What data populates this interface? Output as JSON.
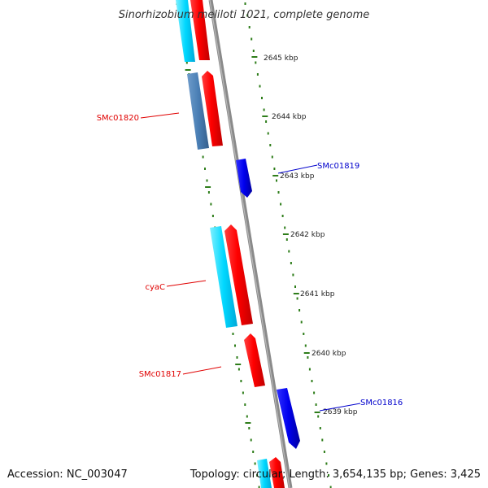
{
  "title": "Sinorhizobium meliloti 1021, complete genome",
  "accession": "Accession: NC_003047",
  "topology": "Topology: circular; Length: 3,654,135 bp; Genes: 3,425",
  "colors": {
    "backbone": "#888888",
    "ticks": "#2e7d1a",
    "forward_gene": "#ff0000",
    "reverse_gene": "#0000ee",
    "forward_aux": "#00ccff",
    "forward_aux_dark": "#4a7fb5",
    "label_forward": "#e00000",
    "label_reverse": "#0000cc"
  },
  "kbp_labels": [
    {
      "text": "2645 kbp"
    },
    {
      "text": "2644 kbp"
    },
    {
      "text": "2643 kbp"
    },
    {
      "text": "2642 kbp"
    },
    {
      "text": "2641 kbp"
    },
    {
      "text": "2640 kbp"
    },
    {
      "text": "2639 kbp"
    }
  ],
  "gene_labels": [
    {
      "text": "SMc01820",
      "strand": "forward"
    },
    {
      "text": "SMc01819",
      "strand": "reverse"
    },
    {
      "text": "cyaC",
      "strand": "forward"
    },
    {
      "text": "SMc01817",
      "strand": "forward"
    },
    {
      "text": "SMc01816",
      "strand": "reverse"
    }
  ]
}
